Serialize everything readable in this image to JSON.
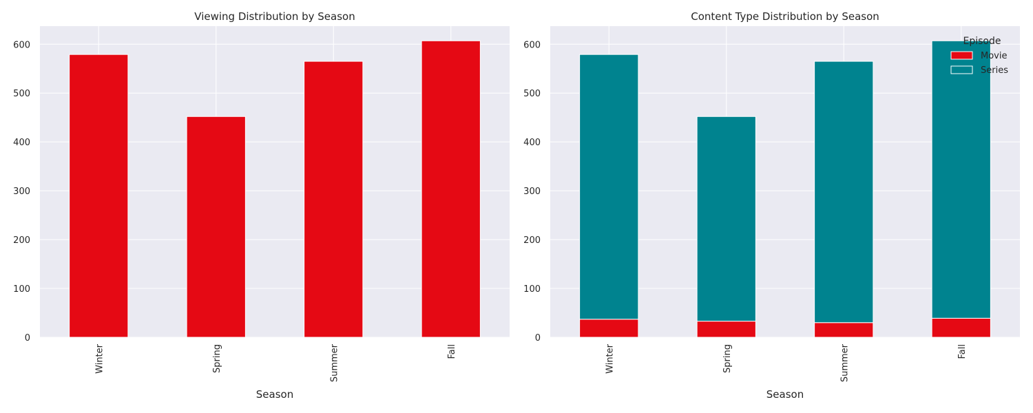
{
  "chart_data": [
    {
      "type": "bar",
      "title": "Viewing Distribution by Season",
      "xlabel": "Season",
      "ylabel": "",
      "categories": [
        "Winter",
        "Spring",
        "Summer",
        "Fall"
      ],
      "ylim": [
        0,
        637
      ],
      "yticks": [
        0,
        100,
        200,
        300,
        400,
        500,
        600
      ],
      "grid": true,
      "series": [
        {
          "values": [
            579,
            452,
            565,
            607
          ],
          "color": "#e50914"
        }
      ]
    },
    {
      "type": "bar",
      "stacked": true,
      "title": "Content Type Distribution by Season",
      "xlabel": "Season",
      "ylabel": "",
      "categories": [
        "Winter",
        "Spring",
        "Summer",
        "Fall"
      ],
      "ylim": [
        0,
        637
      ],
      "yticks": [
        0,
        100,
        200,
        300,
        400,
        500,
        600
      ],
      "grid": true,
      "legend": {
        "title": "Episode",
        "position": "top-right"
      },
      "series": [
        {
          "name": "Movie",
          "values": [
            37,
            33,
            30,
            39
          ],
          "color": "#e50914"
        },
        {
          "name": "Series",
          "values": [
            542,
            419,
            535,
            568
          ],
          "color": "#00838f"
        }
      ]
    }
  ],
  "style": {
    "plot_background": "#eaeaf2",
    "grid_color": "#ffffff",
    "text_color": "#262626"
  }
}
